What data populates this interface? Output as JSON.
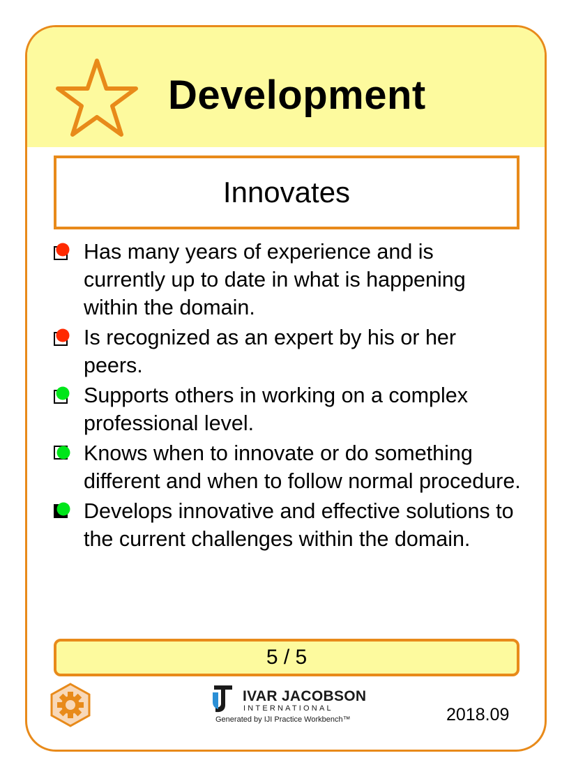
{
  "card": {
    "title": "Development",
    "header_icon": "star-icon",
    "state_name": "Innovates",
    "checklist": [
      {
        "text": "Has many years of experience and is currently up to date in what is happening within the domain.",
        "status": "red"
      },
      {
        "text": "Is recognized as an expert by his or her peers.",
        "status": "red"
      },
      {
        "text": "Supports others in working on a complex professional level.",
        "status": "green"
      },
      {
        "text": "Knows when to innovate or do something different and when to follow normal procedure.",
        "status": "green"
      },
      {
        "text": "Develops innovative and effective solutions to the current challenges within the domain.",
        "status": "green"
      }
    ],
    "progress": "5 / 5",
    "footer_icon": "gear-icon",
    "logo": {
      "name": "IVAR JACOBSON",
      "sub": "INTERNATIONAL",
      "generated_by": "Generated by IJI Practice Workbench™"
    },
    "version": "2018.09"
  },
  "colors": {
    "accent": "#e88a1a",
    "header_bg": "#fdfa9e",
    "status_red": "#ff2a00",
    "status_green": "#00e61a"
  }
}
